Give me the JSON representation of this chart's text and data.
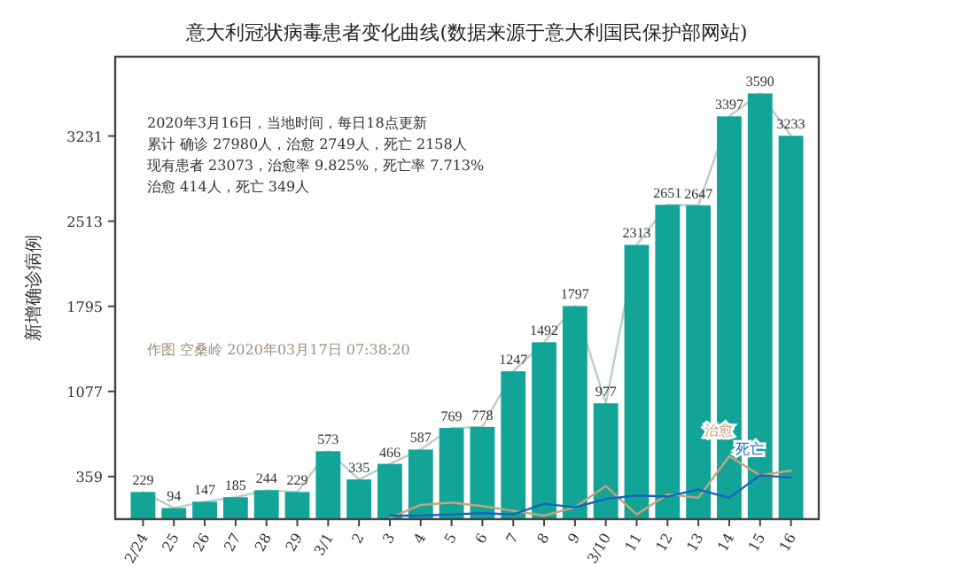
{
  "chart_data": {
    "type": "bar",
    "title": "意大利冠状病毒患者变化曲线(数据来源于意大利国民保护部网站)",
    "ylabel": "新增确诊病例",
    "categories": [
      "2/24",
      "25",
      "26",
      "27",
      "28",
      "29",
      "3/1",
      "2",
      "3",
      "4",
      "5",
      "6",
      "7",
      "8",
      "9",
      "3/10",
      "11",
      "12",
      "13",
      "14",
      "15",
      "16"
    ],
    "ylim": [
      0,
      3900
    ],
    "yticks": [
      359,
      1077,
      1795,
      2513,
      3231
    ],
    "grid": false,
    "annotations": [
      "2020年3月16日，当地时间，每日18点更新",
      "累计 确诊 27980人，治愈 2749人，死亡 2158人",
      "现有患者 23073，治愈率 9.825%，死亡率 7.713%",
      "治愈 414人，死亡 349人",
      "作图 空桑岭 2020年03月17日 07:38:20"
    ],
    "series": [
      {
        "color": "#12a597",
        "values": [
          229,
          94,
          147,
          185,
          244,
          229,
          573,
          335,
          466,
          587,
          769,
          778,
          1247,
          1492,
          1797,
          977,
          2313,
          2651,
          2647,
          3397,
          3590,
          3233
        ],
        "value_labels": [
          "229",
          "94",
          "147",
          "185",
          "244",
          "229",
          "573",
          "335",
          "466",
          "587",
          "769",
          "778",
          "1247",
          "1492",
          "1797",
          "977",
          "2313",
          "2651",
          "2647",
          "3397",
          "3590",
          "3233"
        ]
      },
      {
        "type": "line",
        "color": "#b8cfcc",
        "values": [
          229,
          94,
          147,
          185,
          244,
          229,
          573,
          335,
          466,
          587,
          769,
          778,
          1247,
          1492,
          1797,
          977,
          2313,
          2651,
          2647,
          3397,
          3590,
          3233
        ]
      },
      {
        "type": "line",
        "name": "治愈",
        "color": "#c9a27a",
        "values": [
          null,
          null,
          null,
          null,
          null,
          null,
          null,
          null,
          10,
          120,
          140,
          110,
          70,
          30,
          100,
          280,
          40,
          210,
          180,
          530,
          370,
          410
        ]
      },
      {
        "type": "line",
        "name": "死亡",
        "color": "#1565c0",
        "values": [
          null,
          null,
          null,
          null,
          null,
          null,
          null,
          null,
          30,
          30,
          40,
          50,
          40,
          130,
          100,
          170,
          200,
          190,
          250,
          180,
          370,
          350
        ]
      }
    ]
  }
}
